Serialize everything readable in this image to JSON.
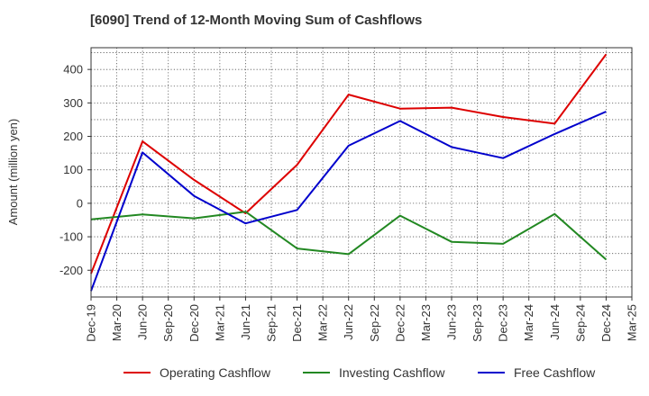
{
  "chart_data": {
    "type": "line",
    "title": "[6090]  Trend of 12-Month Moving Sum of Cashflows",
    "xlabel": "",
    "ylabel": "Amount (million yen)",
    "x": [
      "Dec-19",
      "Mar-20",
      "Jun-20",
      "Sep-20",
      "Dec-20",
      "Mar-21",
      "Jun-21",
      "Sep-21",
      "Dec-21",
      "Mar-22",
      "Jun-22",
      "Sep-22",
      "Dec-22",
      "Mar-23",
      "Jun-23",
      "Sep-23",
      "Dec-23",
      "Mar-24",
      "Jun-24",
      "Sep-24",
      "Dec-24",
      "Mar-25"
    ],
    "yticks": [
      -200,
      -100,
      0,
      100,
      200,
      300,
      400
    ],
    "ylim": [
      -280,
      465
    ],
    "grid": true,
    "legend_position": "bottom",
    "series": [
      {
        "name": "Operating Cashflow",
        "color": "#dd0000",
        "values": [
          -210,
          null,
          185,
          null,
          70,
          null,
          -30,
          null,
          115,
          null,
          325,
          null,
          283,
          null,
          286,
          null,
          258,
          null,
          238,
          null,
          445,
          null
        ]
      },
      {
        "name": "Investing Cashflow",
        "color": "#228822",
        "values": [
          -48,
          null,
          -33,
          null,
          -45,
          null,
          -25,
          null,
          -135,
          null,
          -152,
          null,
          -37,
          null,
          -115,
          null,
          -121,
          null,
          -32,
          null,
          -168,
          null
        ]
      },
      {
        "name": "Free Cashflow",
        "color": "#0000cc",
        "values": [
          -262,
          null,
          152,
          null,
          22,
          null,
          -60,
          null,
          -20,
          null,
          172,
          null,
          246,
          null,
          168,
          null,
          135,
          null,
          207,
          null,
          274,
          null
        ]
      }
    ]
  }
}
